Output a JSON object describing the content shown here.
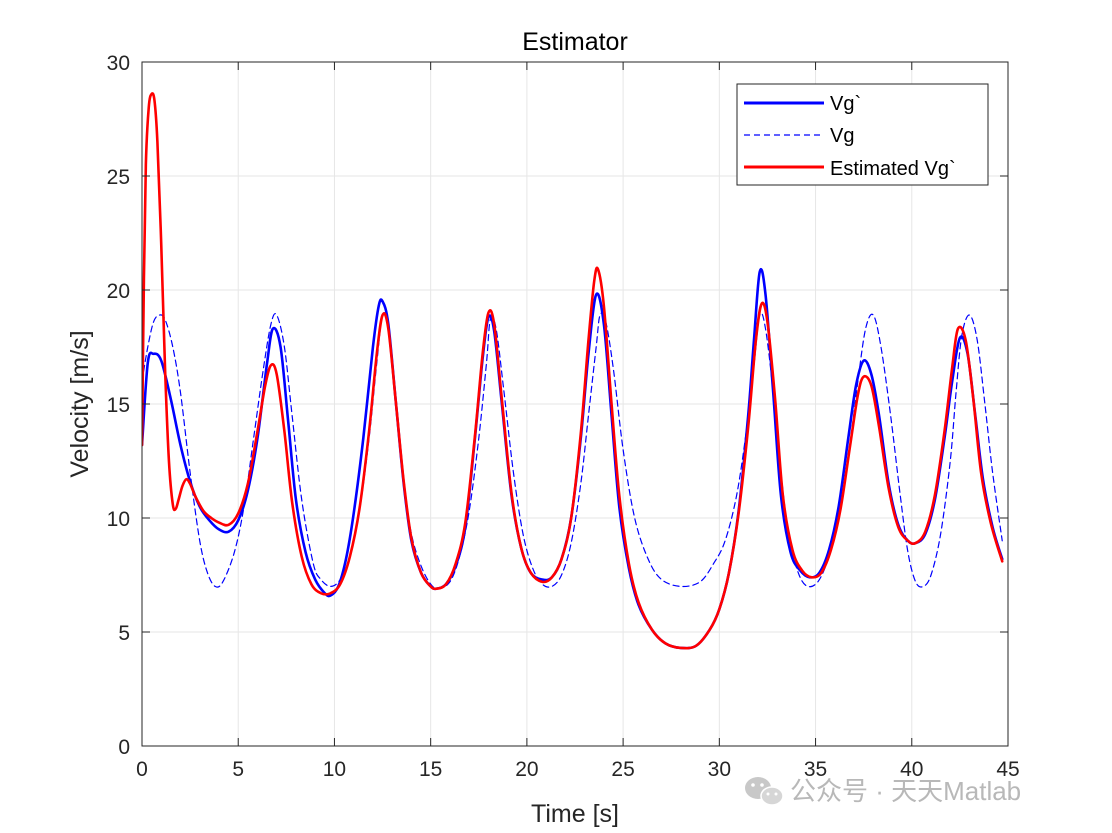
{
  "chart_data": {
    "type": "line",
    "title": "Estimator",
    "xlabel": "Time [s]",
    "ylabel": "Velocity [m/s]",
    "xlim": [
      0,
      45
    ],
    "ylim": [
      0,
      30
    ],
    "xticks": [
      0,
      5,
      10,
      15,
      20,
      25,
      30,
      35,
      40,
      45
    ],
    "yticks": [
      0,
      5,
      10,
      15,
      20,
      25,
      30
    ],
    "grid": true,
    "legend_position": "top-right",
    "series": [
      {
        "name": "Vg`",
        "color": "#0000FF",
        "style": "solid",
        "x": [
          0,
          0.3,
          0.6,
          1.0,
          1.5,
          2.0,
          2.5,
          3.0,
          3.5,
          4.0,
          4.5,
          5.0,
          5.5,
          6.0,
          6.5,
          6.8,
          7.2,
          7.6,
          8.0,
          8.5,
          9.0,
          9.5,
          9.8,
          10.2,
          10.6,
          11.0,
          11.5,
          12.0,
          12.3,
          12.5,
          12.8,
          13.2,
          13.6,
          14.0,
          14.5,
          15.0,
          15.3,
          15.8,
          16.3,
          16.8,
          17.3,
          17.7,
          18.0,
          18.3,
          18.7,
          19.2,
          19.7,
          20.2,
          20.8,
          21.3,
          21.8,
          22.3,
          22.8,
          23.2,
          23.6,
          24.0,
          24.4,
          24.8,
          25.3,
          25.8,
          26.5,
          27.2,
          28.0,
          28.8,
          29.5,
          30.0,
          30.5,
          31.0,
          31.5,
          31.8,
          32.1,
          32.4,
          32.8,
          33.2,
          33.7,
          34.2,
          34.7,
          35.2,
          35.7,
          36.2,
          36.7,
          37.1,
          37.5,
          37.9,
          38.3,
          38.8,
          39.3,
          39.8,
          40.2,
          40.7,
          41.2,
          41.7,
          42.1,
          42.5,
          42.9,
          43.3,
          43.7,
          44.2,
          44.7
        ],
        "y": [
          13.2,
          16.8,
          17.2,
          16.9,
          15.2,
          13.2,
          11.6,
          10.5,
          9.9,
          9.5,
          9.4,
          9.9,
          11.2,
          13.5,
          16.8,
          18.3,
          17.5,
          14.2,
          10.8,
          8.5,
          7.3,
          6.7,
          6.6,
          7.0,
          8.2,
          10.2,
          13.5,
          17.5,
          19.3,
          19.5,
          18.5,
          15.0,
          11.5,
          9.0,
          7.6,
          7.0,
          6.9,
          7.1,
          7.9,
          9.6,
          13.5,
          17.0,
          18.8,
          18.2,
          15.0,
          11.0,
          8.7,
          7.6,
          7.3,
          7.4,
          8.2,
          10.0,
          13.5,
          17.2,
          19.8,
          18.5,
          14.5,
          10.5,
          7.8,
          6.2,
          5.1,
          4.5,
          4.3,
          4.4,
          5.1,
          6.0,
          7.6,
          10.3,
          14.5,
          17.8,
          20.8,
          19.8,
          15.5,
          11.0,
          8.5,
          7.7,
          7.4,
          7.6,
          8.6,
          10.5,
          13.5,
          15.8,
          16.9,
          16.3,
          14.5,
          11.5,
          9.7,
          9.0,
          8.9,
          9.3,
          10.8,
          13.5,
          16.0,
          17.9,
          17.2,
          14.5,
          11.7,
          9.6,
          8.2
        ]
      },
      {
        "name": "Vg",
        "color": "#0000FF",
        "style": "dashed",
        "x": [
          0,
          0.3,
          0.6,
          0.9,
          1.2,
          1.6,
          2.0,
          2.5,
          3.0,
          3.4,
          3.8,
          4.2,
          4.8,
          5.3,
          5.8,
          6.3,
          6.7,
          7.0,
          7.4,
          7.8,
          8.3,
          8.9,
          9.3,
          9.8,
          10.3,
          10.8,
          11.3,
          11.8,
          12.2,
          12.5,
          12.8,
          13.2,
          13.6,
          14.0,
          14.5,
          15.0,
          15.4,
          16.0,
          16.5,
          17.0,
          17.5,
          17.9,
          18.1,
          18.4,
          18.8,
          19.3,
          19.8,
          20.3,
          20.8,
          21.3,
          21.8,
          22.3,
          22.8,
          23.2,
          23.6,
          23.8,
          24.1,
          24.5,
          25.0,
          25.6,
          26.3,
          27.0,
          28.0,
          29.0,
          29.7,
          30.3,
          30.9,
          31.4,
          31.8,
          32.1,
          32.4,
          32.8,
          33.2,
          33.6,
          34.1,
          34.6,
          35.2,
          35.8,
          36.3,
          36.8,
          37.2,
          37.6,
          38.0,
          38.4,
          38.9,
          39.4,
          39.8,
          40.2,
          40.6,
          41.0,
          41.5,
          42.0,
          42.3,
          42.6,
          43.0,
          43.4,
          43.8,
          44.2,
          44.7
        ],
        "y": [
          16.0,
          17.5,
          18.6,
          18.9,
          18.7,
          17.5,
          15.5,
          12.0,
          9.0,
          7.6,
          7.0,
          7.2,
          8.5,
          10.5,
          13.5,
          16.5,
          18.5,
          18.9,
          17.5,
          14.5,
          10.8,
          8.0,
          7.3,
          7.0,
          7.3,
          8.3,
          10.3,
          13.5,
          16.8,
          18.9,
          18.3,
          15.0,
          11.6,
          9.3,
          7.9,
          7.1,
          6.9,
          7.2,
          8.3,
          10.3,
          13.5,
          16.8,
          18.7,
          18.3,
          15.6,
          12.0,
          9.3,
          7.8,
          7.1,
          7.0,
          7.5,
          8.9,
          11.5,
          14.5,
          17.5,
          18.9,
          18.6,
          16.5,
          13.0,
          10.0,
          8.2,
          7.3,
          7.0,
          7.2,
          8.0,
          9.0,
          11.0,
          13.8,
          16.7,
          18.9,
          18.3,
          15.5,
          12.0,
          9.3,
          7.6,
          7.0,
          7.3,
          8.6,
          10.5,
          13.3,
          16.0,
          18.3,
          18.9,
          17.5,
          14.5,
          11.0,
          8.5,
          7.2,
          7.0,
          7.5,
          9.3,
          12.5,
          15.5,
          18.0,
          18.9,
          17.8,
          15.0,
          12.0,
          9.0
        ]
      },
      {
        "name": "Estimated Vg`",
        "color": "#FF0000",
        "style": "solid",
        "x": [
          0,
          0.1,
          0.2,
          0.35,
          0.5,
          0.65,
          0.8,
          1.0,
          1.2,
          1.4,
          1.6,
          1.75,
          1.9,
          2.1,
          2.3,
          2.5,
          2.8,
          3.2,
          3.6,
          4.0,
          4.5,
          5.0,
          5.5,
          6.0,
          6.4,
          6.7,
          7.0,
          7.4,
          7.8,
          8.3,
          8.8,
          9.3,
          9.8,
          10.3,
          10.8,
          11.3,
          11.8,
          12.2,
          12.5,
          12.8,
          13.2,
          13.6,
          14.0,
          14.5,
          15.0,
          15.3,
          15.8,
          16.3,
          16.8,
          17.3,
          17.7,
          18.0,
          18.3,
          18.7,
          19.2,
          19.7,
          20.2,
          20.8,
          21.3,
          21.8,
          22.3,
          22.8,
          23.2,
          23.5,
          23.7,
          24.0,
          24.4,
          24.8,
          25.3,
          25.8,
          26.5,
          27.2,
          28.0,
          28.8,
          29.5,
          30.0,
          30.5,
          31.0,
          31.5,
          31.9,
          32.2,
          32.5,
          32.9,
          33.3,
          33.8,
          34.3,
          34.8,
          35.3,
          35.8,
          36.3,
          36.8,
          37.2,
          37.5,
          37.9,
          38.3,
          38.8,
          39.3,
          39.8,
          40.2,
          40.7,
          41.2,
          41.7,
          42.1,
          42.4,
          42.8,
          43.2,
          43.6,
          44.1,
          44.7
        ],
        "y": [
          13.2,
          20.5,
          25.5,
          28.0,
          28.6,
          28.3,
          26.5,
          22.0,
          16.5,
          12.5,
          10.6,
          10.4,
          10.8,
          11.4,
          11.7,
          11.5,
          10.9,
          10.3,
          10.0,
          9.8,
          9.7,
          10.2,
          11.5,
          13.8,
          15.8,
          16.7,
          16.3,
          13.8,
          10.7,
          8.3,
          7.1,
          6.7,
          6.7,
          7.1,
          8.3,
          10.4,
          13.8,
          17.2,
          18.9,
          18.3,
          15.0,
          11.6,
          9.1,
          7.6,
          7.0,
          6.9,
          7.1,
          8.0,
          9.8,
          13.6,
          17.2,
          19.0,
          18.5,
          15.2,
          11.1,
          8.7,
          7.6,
          7.2,
          7.4,
          8.2,
          10.0,
          13.7,
          17.8,
          20.4,
          20.9,
          19.3,
          15.0,
          11.0,
          8.0,
          6.3,
          5.1,
          4.5,
          4.3,
          4.4,
          5.1,
          6.0,
          7.6,
          10.2,
          14.0,
          17.8,
          19.4,
          18.6,
          15.2,
          11.0,
          8.6,
          7.7,
          7.4,
          7.6,
          8.6,
          10.4,
          13.2,
          15.4,
          16.2,
          15.8,
          14.0,
          11.3,
          9.6,
          9.0,
          8.9,
          9.4,
          11.0,
          13.8,
          16.6,
          18.3,
          17.8,
          15.2,
          12.0,
          9.8,
          8.1
        ]
      }
    ]
  },
  "watermark": {
    "text": "公众号 · 天天Matlab",
    "icon": "wechat-icon"
  }
}
